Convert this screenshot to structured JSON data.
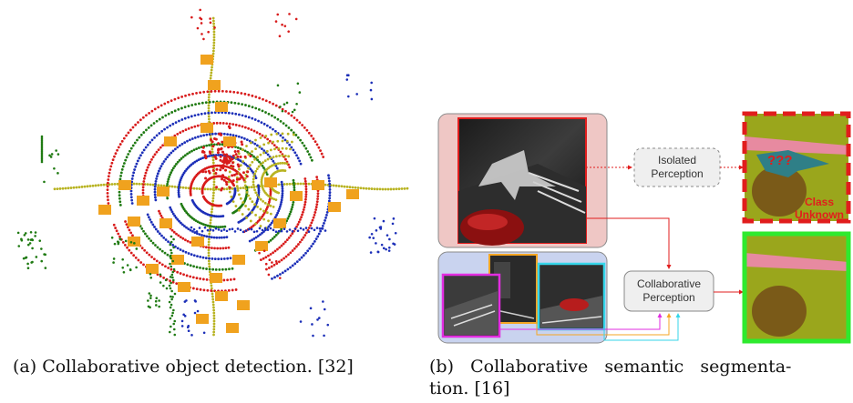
{
  "figure_a": {
    "caption": "(a) Collaborative object detection. [32]"
  },
  "figure_b": {
    "caption_line1": "(b)   Collaborative   semantic   segmenta-",
    "caption_line2": "tion. [16]",
    "isolated_label_1": "Isolated",
    "isolated_label_2": "Perception",
    "collaborative_label_1": "Collaborative",
    "collaborative_label_2": "Perception",
    "unknown_marks": "???",
    "class_unknown_1": "Class",
    "class_unknown_2": "Unknown"
  },
  "colors": {
    "red": "#e11d1d",
    "green": "#2eea2e",
    "pink_bg": "#efc7c5",
    "blue_bg": "#c9d3ef",
    "orange": "#f5a623",
    "magenta": "#e22de0",
    "cyan": "#35d6ea",
    "olive": "#9aa61c"
  }
}
